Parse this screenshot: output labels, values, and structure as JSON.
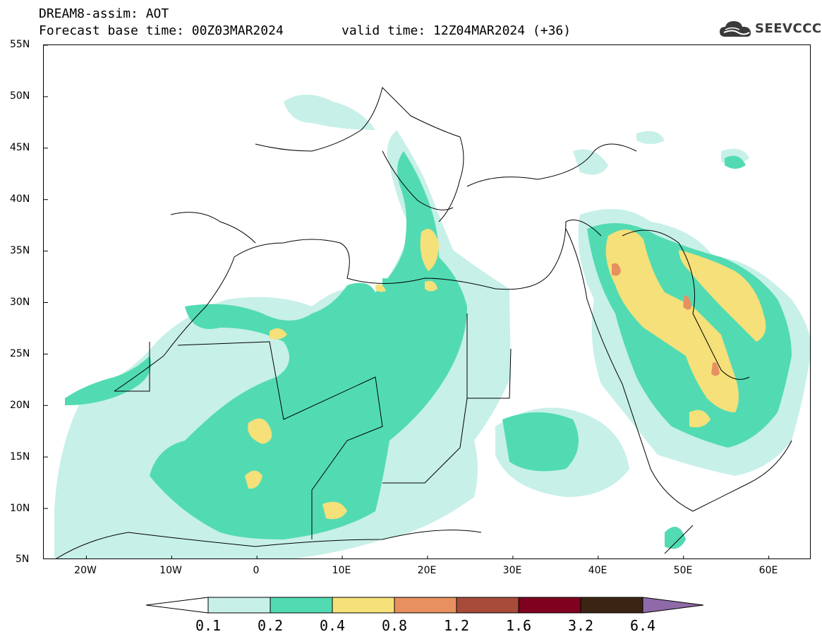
{
  "title": {
    "line1": "DREAM8-assim: AOT",
    "line2_base": "Forecast base time: 00Z03MAR2024",
    "line2_valid": "valid time: 12Z04MAR2024 (+36)"
  },
  "logo": {
    "text": "SEEVCCC",
    "icon": "cloud-icon"
  },
  "map": {
    "lat_range": [
      5,
      55
    ],
    "lon_range": [
      -25,
      65
    ],
    "lat_labels": [
      "55N",
      "50N",
      "45N",
      "40N",
      "35N",
      "30N",
      "25N",
      "20N",
      "15N",
      "10N",
      "5N"
    ],
    "lon_labels": [
      "20W",
      "10W",
      "0",
      "10E",
      "20E",
      "30E",
      "40E",
      "50E",
      "60E"
    ]
  },
  "colorbar": {
    "labels": [
      "0.1",
      "0.2",
      "0.4",
      "0.8",
      "1.2",
      "1.6",
      "3.2",
      "6.4"
    ],
    "colors": [
      "#ffffff",
      "#c7f0e8",
      "#52dbb2",
      "#f5e07a",
      "#e89060",
      "#a84b3a",
      "#800020",
      "#3c2414",
      "#8f6aa8"
    ]
  }
}
